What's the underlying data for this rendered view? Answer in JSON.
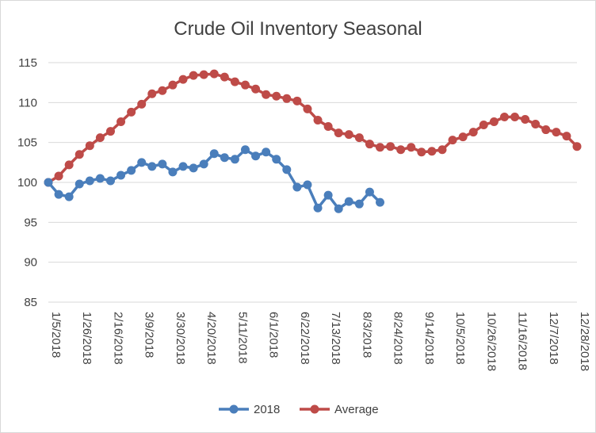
{
  "chart_data": {
    "type": "line",
    "title": "Crude Oil Inventory Seasonal",
    "xlabel": "",
    "ylabel": "",
    "ylim": [
      85,
      115
    ],
    "yticks": [
      85,
      90,
      95,
      100,
      105,
      110,
      115
    ],
    "grid": true,
    "legend_position": "bottom",
    "x_tick_labels": [
      "1/5/2018",
      "1/26/2018",
      "2/16/2018",
      "3/9/2018",
      "3/30/2018",
      "4/20/2018",
      "5/11/2018",
      "6/1/2018",
      "6/22/2018",
      "7/13/2018",
      "8/3/2018",
      "8/24/2018",
      "9/14/2018",
      "10/5/2018",
      "10/26/2018",
      "11/16/2018",
      "12/7/2018",
      "12/28/2018"
    ],
    "series": [
      {
        "name": "2018",
        "color": "#4a7ebb",
        "values": [
          100.0,
          98.5,
          98.2,
          99.8,
          100.2,
          100.5,
          100.2,
          100.9,
          101.5,
          102.5,
          102.0,
          102.3,
          101.3,
          102.0,
          101.8,
          102.3,
          103.6,
          103.1,
          102.9,
          104.1,
          103.3,
          103.8,
          102.9,
          101.6,
          99.4,
          99.7,
          96.8,
          98.4,
          96.7,
          97.6,
          97.3,
          98.8,
          97.5
        ]
      },
      {
        "name": "Average",
        "color": "#be4b48",
        "values": [
          100.0,
          100.8,
          102.2,
          103.5,
          104.6,
          105.6,
          106.4,
          107.6,
          108.8,
          109.8,
          111.1,
          111.5,
          112.2,
          112.9,
          113.4,
          113.5,
          113.6,
          113.2,
          112.6,
          112.2,
          111.7,
          111.0,
          110.8,
          110.5,
          110.2,
          109.2,
          107.8,
          107.0,
          106.2,
          106.0,
          105.6,
          104.8,
          104.4,
          104.5,
          104.1,
          104.4,
          103.8,
          103.9,
          104.1,
          105.3,
          105.7,
          106.3,
          107.2,
          107.6,
          108.2,
          108.2,
          107.9,
          107.3,
          106.6,
          106.3,
          105.8,
          104.5
        ]
      }
    ]
  }
}
